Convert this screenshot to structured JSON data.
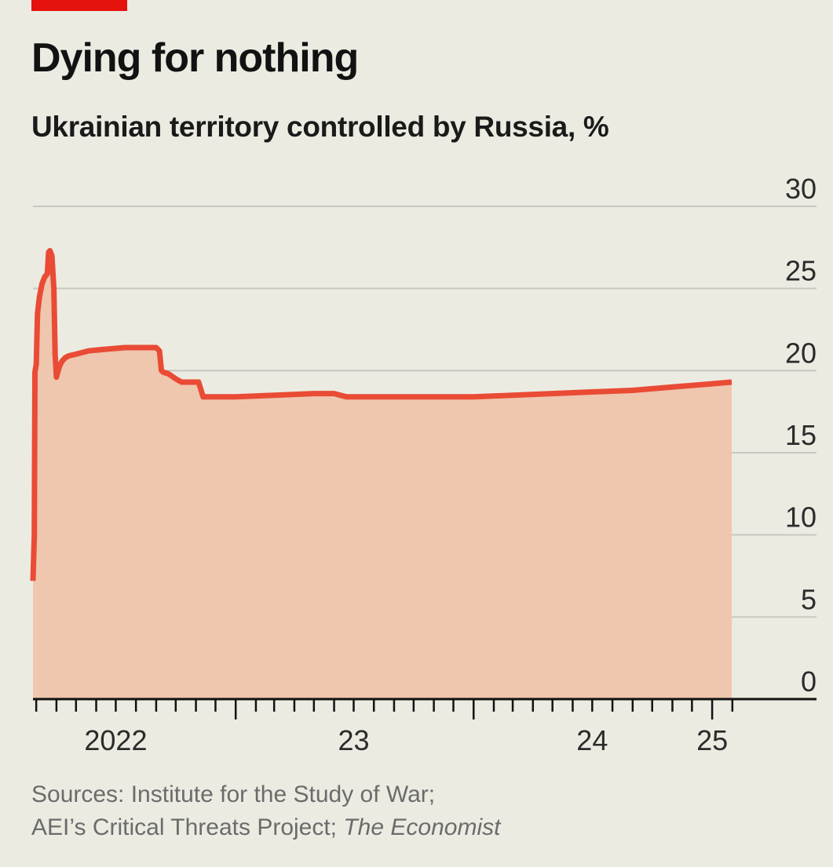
{
  "header": {
    "title": "Dying for nothing",
    "subtitle": "Ukrainian territory controlled by Russia, %"
  },
  "footer": {
    "source_line1": "Sources: Institute for the Study of War;",
    "source_line2_prefix": "AEI’s Critical Threats Project; ",
    "source_line2_italic": "The Economist"
  },
  "colors": {
    "background": "#ecebe2",
    "line": "#e94b35",
    "area": "#efc6ae",
    "grid": "#c9c8c0",
    "axis": "#121212",
    "brand_tag": "#e3120b"
  },
  "chart_data": {
    "type": "area",
    "title": "Dying for nothing",
    "subtitle": "Ukrainian territory controlled by Russia, %",
    "xlabel": "",
    "ylabel": "",
    "x_unit": "date",
    "ylim": [
      0,
      30
    ],
    "yticks": [
      "0",
      "5",
      "10",
      "15",
      "20",
      "25",
      "30"
    ],
    "xticks": [
      {
        "label": "2022",
        "date": "2022-07-01"
      },
      {
        "label": "23",
        "date": "2023-07-01"
      },
      {
        "label": "24",
        "date": "2024-07-01"
      },
      {
        "label": "25",
        "date": "2025-01-01"
      }
    ],
    "x_range": [
      "2022-02-24",
      "2025-01-31"
    ],
    "grid": true,
    "y_axis_position": "right",
    "series": [
      {
        "x": [
          "2022-02-24",
          "2022-02-26",
          "2022-02-27",
          "2022-03-01",
          "2022-03-03",
          "2022-03-06",
          "2022-03-10",
          "2022-03-14",
          "2022-03-18",
          "2022-03-20",
          "2022-03-22",
          "2022-03-25",
          "2022-03-28",
          "2022-03-30",
          "2022-04-01",
          "2022-04-03",
          "2022-04-06",
          "2022-04-10",
          "2022-04-15",
          "2022-04-20",
          "2022-05-01",
          "2022-05-20",
          "2022-06-15",
          "2022-07-15",
          "2022-08-15",
          "2022-09-01",
          "2022-09-06",
          "2022-09-09",
          "2022-09-12",
          "2022-09-20",
          "2022-10-01",
          "2022-10-10",
          "2022-10-20",
          "2022-11-05",
          "2022-11-09",
          "2022-11-12",
          "2022-12-01",
          "2023-01-01",
          "2023-03-01",
          "2023-05-01",
          "2023-06-01",
          "2023-06-20",
          "2023-08-01",
          "2023-10-01",
          "2024-01-01",
          "2024-03-01",
          "2024-05-01",
          "2024-07-01",
          "2024-09-01",
          "2024-11-01",
          "2025-01-31"
        ],
        "values": [
          7.2,
          10.0,
          19.9,
          20.4,
          23.5,
          24.5,
          25.3,
          25.7,
          25.9,
          27.2,
          27.3,
          27.0,
          25.0,
          21.0,
          19.6,
          19.9,
          20.3,
          20.6,
          20.8,
          20.9,
          21.0,
          21.2,
          21.3,
          21.4,
          21.4,
          21.4,
          21.2,
          20.0,
          19.9,
          19.8,
          19.5,
          19.3,
          19.3,
          19.3,
          18.8,
          18.4,
          18.4,
          18.4,
          18.5,
          18.6,
          18.6,
          18.4,
          18.4,
          18.4,
          18.4,
          18.5,
          18.6,
          18.7,
          18.8,
          19.0,
          19.3
        ]
      }
    ]
  }
}
